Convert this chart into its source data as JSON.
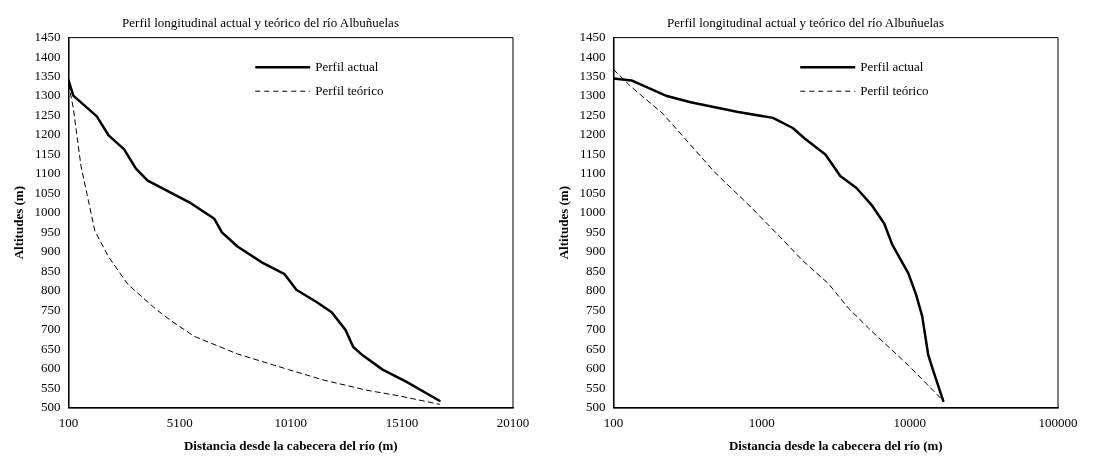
{
  "chart_data": [
    {
      "type": "line",
      "title": "Perfil longitudinal actual y teórico del río Albuñuelas",
      "xlabel": "Distancia desde la cabecera del río (m)",
      "ylabel": "Altitudes (m)",
      "xlim": [
        100,
        20100
      ],
      "xticks": [
        100,
        5100,
        10100,
        15100,
        20100
      ],
      "ylim": [
        500,
        1450
      ],
      "yticks": [
        500,
        550,
        600,
        650,
        700,
        750,
        800,
        850,
        900,
        950,
        1000,
        1050,
        1100,
        1150,
        1200,
        1250,
        1300,
        1350,
        1400,
        1450
      ],
      "grid": false,
      "legend": "top right",
      "marker": "none",
      "series": [
        {
          "name": "Perfil actual",
          "color": "#000000",
          "line_style": "solid",
          "x": [
            100,
            310,
            1370,
            1900,
            2600,
            3130,
            3660,
            5600,
            6660,
            7000,
            7700,
            8770,
            9820,
            10350,
            11240,
            11940,
            12560,
            12910,
            13350,
            14230,
            15290,
            16790
          ],
          "values": [
            1340,
            1301,
            1248,
            1199,
            1163,
            1114,
            1083,
            1025,
            985,
            950,
            914,
            874,
            843,
            803,
            772,
            745,
            700,
            656,
            634,
            598,
            567,
            518
          ]
        },
        {
          "name": "Perfil teórico",
          "color": "#000000",
          "line_style": "dashed",
          "x": [
            100,
            310,
            660,
            930,
            1280,
            1900,
            2780,
            4010,
            4720,
            5770,
            7710,
            10000,
            11590,
            13530,
            14940,
            16790
          ],
          "values": [
            1330,
            1270,
            1119,
            1048,
            954,
            887,
            816,
            754,
            723,
            683,
            638,
            598,
            571,
            545,
            531,
            509
          ]
        }
      ]
    },
    {
      "type": "line",
      "title": "Perfil longitudinal actual y teórico del río Albuñuelas",
      "xlabel": "Distancia desde la cabecera del río (m)",
      "ylabel": "Altitudes (m)",
      "log": "x",
      "xlim": [
        100,
        100000
      ],
      "xticks": [
        100,
        1000,
        10000,
        100000
      ],
      "ylim": [
        500,
        1450
      ],
      "yticks": [
        500,
        550,
        600,
        650,
        700,
        750,
        800,
        850,
        900,
        950,
        1000,
        1050,
        1100,
        1150,
        1200,
        1250,
        1300,
        1350,
        1400,
        1450
      ],
      "grid": false,
      "legend": "top right",
      "marker": "none",
      "series": [
        {
          "name": "Perfil actual",
          "color": "#000000",
          "line_style": "solid",
          "x": [
            100,
            132,
            229,
            331,
            692,
            1190,
            1620,
            1950,
            2690,
            3390,
            4360,
            5580,
            6710,
            7620,
            9770,
            11000,
            12100,
            13300,
            14500,
            16800
          ],
          "values": [
            1345,
            1340,
            1300,
            1284,
            1259,
            1244,
            1218,
            1191,
            1150,
            1095,
            1064,
            1018,
            973,
            918,
            845,
            791,
            736,
            636,
            591,
            518
          ]
        },
        {
          "name": "Perfil teórico",
          "color": "#000000",
          "line_style": "dashed",
          "x": [
            100,
            132,
            215,
            480,
            830,
            1350,
            1900,
            2830,
            3860,
            5580,
            9770,
            16800
          ],
          "values": [
            1368,
            1323,
            1255,
            1105,
            1018,
            936,
            877,
            818,
            755,
            695,
            609,
            518
          ]
        }
      ]
    }
  ]
}
